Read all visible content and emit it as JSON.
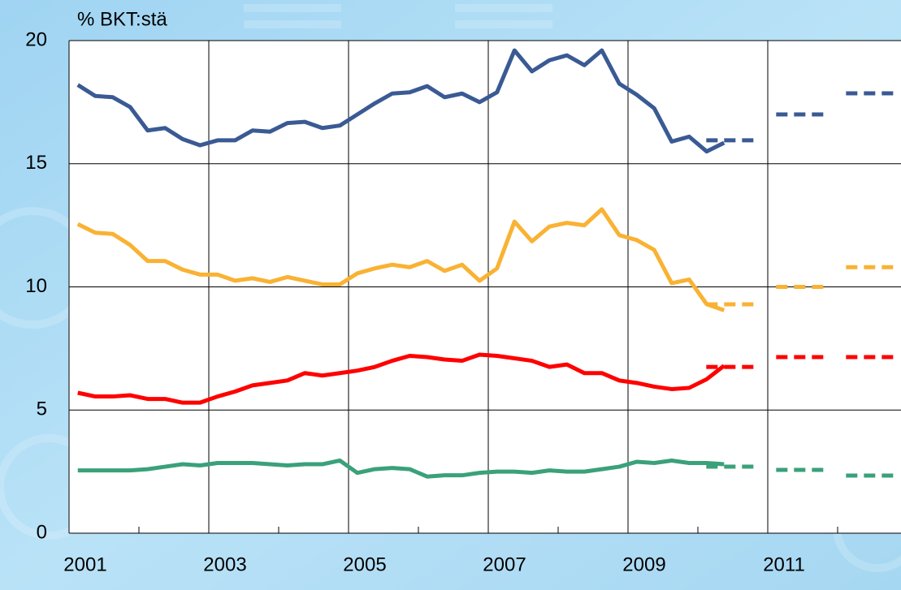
{
  "chart_data": {
    "type": "line",
    "ylabel": "% BKT:stä",
    "xlim": [
      2001,
      2013
    ],
    "ylim": [
      0,
      20
    ],
    "yticks": [
      0,
      5,
      10,
      15,
      20
    ],
    "xticks": [
      2001,
      2003,
      2005,
      2007,
      2009,
      2011
    ],
    "grid": true,
    "x": [
      2001.125,
      2001.375,
      2001.625,
      2001.875,
      2002.125,
      2002.375,
      2002.625,
      2002.875,
      2003.125,
      2003.375,
      2003.625,
      2003.875,
      2004.125,
      2004.375,
      2004.625,
      2004.875,
      2005.125,
      2005.375,
      2005.625,
      2005.875,
      2006.125,
      2006.375,
      2006.625,
      2006.875,
      2007.125,
      2007.375,
      2007.625,
      2007.875,
      2008.125,
      2008.375,
      2008.625,
      2008.875,
      2009.125,
      2009.375,
      2009.625,
      2009.875,
      2010.125,
      2010.375
    ],
    "series": [
      {
        "color": "#3a5a94",
        "values": [
          18.2,
          17.75,
          17.7,
          17.3,
          16.35,
          16.45,
          16.0,
          15.75,
          15.95,
          15.95,
          16.35,
          16.3,
          16.65,
          16.7,
          16.45,
          16.55,
          17.0,
          17.45,
          17.85,
          17.9,
          18.15,
          17.7,
          17.85,
          17.5,
          17.9,
          19.6,
          18.75,
          19.2,
          19.4,
          19.0,
          19.6,
          18.25,
          17.8,
          17.25,
          15.9,
          16.1,
          15.5,
          15.85
        ]
      },
      {
        "color": "#f9b233",
        "values": [
          12.55,
          12.2,
          12.15,
          11.7,
          11.05,
          11.05,
          10.7,
          10.5,
          10.5,
          10.25,
          10.35,
          10.2,
          10.4,
          10.25,
          10.1,
          10.1,
          10.55,
          10.75,
          10.9,
          10.8,
          11.05,
          10.65,
          10.9,
          10.25,
          10.75,
          12.65,
          11.85,
          12.45,
          12.6,
          12.5,
          13.15,
          12.1,
          11.9,
          11.5,
          10.15,
          10.3,
          9.3,
          9.05
        ]
      },
      {
        "color": "#ff0000",
        "values": [
          5.7,
          5.55,
          5.55,
          5.6,
          5.45,
          5.45,
          5.3,
          5.3,
          5.55,
          5.75,
          6.0,
          6.1,
          6.2,
          6.5,
          6.4,
          6.5,
          6.6,
          6.75,
          7.0,
          7.2,
          7.15,
          7.05,
          7.0,
          7.25,
          7.2,
          7.1,
          7.0,
          6.75,
          6.85,
          6.5,
          6.5,
          6.2,
          6.1,
          5.95,
          5.85,
          5.9,
          6.25,
          6.8
        ]
      },
      {
        "color": "#3aa17a",
        "values": [
          2.55,
          2.55,
          2.55,
          2.55,
          2.6,
          2.7,
          2.8,
          2.75,
          2.85,
          2.85,
          2.85,
          2.8,
          2.75,
          2.8,
          2.8,
          2.95,
          2.45,
          2.6,
          2.65,
          2.6,
          2.3,
          2.35,
          2.35,
          2.45,
          2.5,
          2.5,
          2.45,
          2.55,
          2.5,
          2.5,
          2.6,
          2.7,
          2.9,
          2.85,
          2.95,
          2.85,
          2.85,
          2.8
        ]
      },
      {
        "color": "#3a5a94",
        "dashed": true,
        "x": [
          2010.5,
          2011.5,
          2012.5
        ],
        "values": [
          15.95,
          17.0,
          17.86
        ]
      },
      {
        "color": "#f9b233",
        "dashed": true,
        "x": [
          2010.5,
          2011.5,
          2012.5
        ],
        "values": [
          9.29,
          10.0,
          10.8
        ]
      },
      {
        "color": "#ff0000",
        "dashed": true,
        "x": [
          2010.5,
          2011.5,
          2012.5
        ],
        "values": [
          6.75,
          7.15,
          7.15
        ]
      },
      {
        "color": "#3aa17a",
        "dashed": true,
        "x": [
          2010.5,
          2011.5,
          2012.5
        ],
        "values": [
          2.7,
          2.57,
          2.34
        ]
      }
    ]
  }
}
